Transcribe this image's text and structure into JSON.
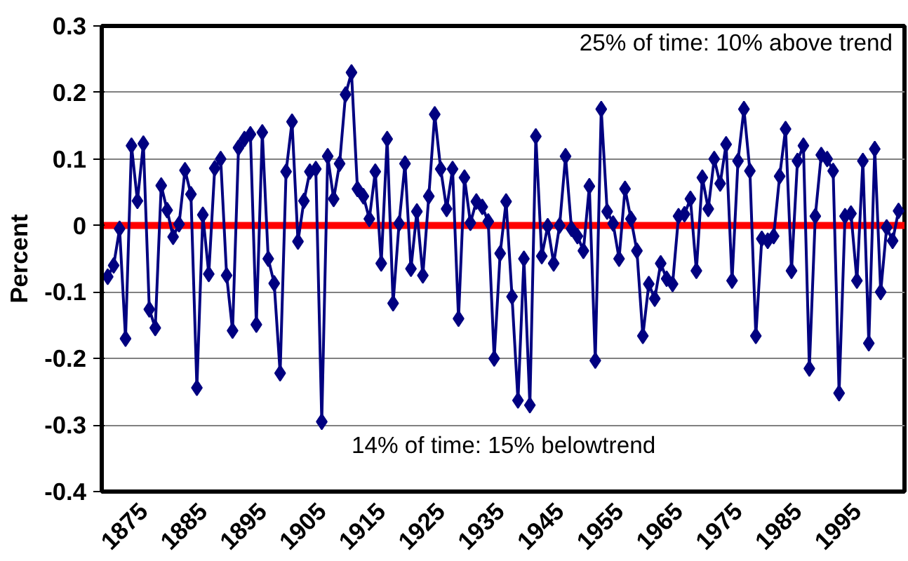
{
  "chart_data": {
    "type": "line",
    "ylabel": "Percent",
    "annotations": [
      "25% of time: 10% above trend",
      "14% of time: 15% belowtrend"
    ],
    "x": [
      1869,
      1870,
      1871,
      1872,
      1873,
      1874,
      1875,
      1876,
      1877,
      1878,
      1879,
      1880,
      1881,
      1882,
      1883,
      1884,
      1885,
      1886,
      1887,
      1888,
      1889,
      1890,
      1891,
      1892,
      1893,
      1894,
      1895,
      1896,
      1897,
      1898,
      1899,
      1900,
      1901,
      1902,
      1903,
      1904,
      1905,
      1906,
      1907,
      1908,
      1909,
      1910,
      1911,
      1912,
      1913,
      1914,
      1915,
      1916,
      1917,
      1918,
      1919,
      1920,
      1921,
      1922,
      1923,
      1924,
      1925,
      1926,
      1927,
      1928,
      1929,
      1930,
      1931,
      1932,
      1933,
      1934,
      1935,
      1936,
      1937,
      1938,
      1939,
      1940,
      1941,
      1942,
      1943,
      1944,
      1945,
      1946,
      1947,
      1948,
      1949,
      1950,
      1951,
      1952,
      1953,
      1954,
      1955,
      1956,
      1957,
      1958,
      1959,
      1960,
      1961,
      1962,
      1963,
      1964,
      1965,
      1966,
      1967,
      1968,
      1969,
      1970,
      1971,
      1972,
      1973,
      1974,
      1975,
      1976,
      1977,
      1978,
      1979,
      1980,
      1981,
      1982,
      1983,
      1984,
      1985,
      1986,
      1987,
      1988,
      1989,
      1990,
      1991,
      1992,
      1993,
      1994,
      1995,
      1996,
      1997,
      1998,
      1999,
      2000,
      2001,
      2002
    ],
    "series": [
      {
        "color": "#000080",
        "values": [
          -0.077,
          -0.06,
          -0.005,
          -0.17,
          0.12,
          0.037,
          0.123,
          -0.126,
          -0.154,
          0.06,
          0.023,
          -0.017,
          0.002,
          0.083,
          0.047,
          -0.244,
          0.016,
          -0.073,
          0.086,
          0.1,
          -0.075,
          -0.158,
          0.117,
          0.13,
          0.137,
          -0.149,
          0.14,
          -0.05,
          -0.087,
          -0.222,
          0.081,
          0.156,
          -0.024,
          0.037,
          0.081,
          0.085,
          -0.295,
          0.104,
          0.04,
          0.093,
          0.197,
          0.23,
          0.055,
          0.044,
          0.01,
          0.081,
          -0.057,
          0.13,
          -0.117,
          0.003,
          0.093,
          -0.065,
          0.021,
          -0.075,
          0.044,
          0.167,
          0.085,
          0.025,
          0.085,
          -0.14,
          0.072,
          0.004,
          0.036,
          0.028,
          0.006,
          -0.2,
          -0.042,
          0.036,
          -0.107,
          -0.263,
          -0.05,
          -0.27,
          0.134,
          -0.046,
          -0.001,
          -0.057,
          0.0,
          0.104,
          -0.005,
          -0.016,
          -0.038,
          0.059,
          -0.203,
          0.175,
          0.021,
          0.003,
          -0.05,
          0.055,
          0.01,
          -0.038,
          -0.166,
          -0.088,
          -0.11,
          -0.057,
          -0.08,
          -0.088,
          0.014,
          0.017,
          0.04,
          -0.068,
          0.072,
          0.025,
          0.1,
          0.063,
          0.122,
          -0.083,
          0.097,
          0.175,
          0.082,
          -0.166,
          -0.02,
          -0.023,
          -0.016,
          0.074,
          0.145,
          -0.068,
          0.097,
          0.12,
          -0.215,
          0.014,
          0.106,
          0.1,
          0.082,
          -0.252,
          0.014,
          0.018,
          -0.083,
          0.097,
          -0.177,
          0.115,
          -0.1,
          -0.003,
          -0.023,
          0.022
        ]
      }
    ],
    "xlim": [
      1868,
      2003
    ],
    "xticks": [
      1875,
      1885,
      1895,
      1905,
      1915,
      1925,
      1935,
      1945,
      1955,
      1965,
      1975,
      1985,
      1995
    ],
    "ylim": [
      -0.4,
      0.3
    ],
    "yticks": [
      -0.4,
      -0.3,
      -0.2,
      -0.1,
      0,
      0.1,
      0.2,
      0.3
    ],
    "ref_lines": [
      {
        "axis": "y",
        "value": 0,
        "color": "#ff0000"
      }
    ],
    "grid": "y",
    "marker": "diamond"
  }
}
